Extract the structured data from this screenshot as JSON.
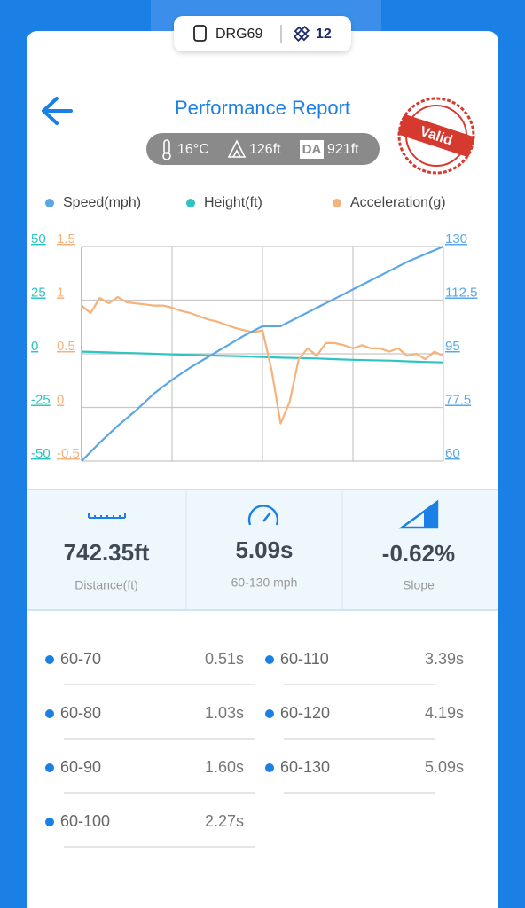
{
  "header": {
    "device": "DRG69",
    "count": "12",
    "title": "Performance Report",
    "stamp": "Valid"
  },
  "conditions": {
    "temperature": "16°C",
    "altitude": "126ft",
    "da_label": "DA",
    "density_altitude": "921ft"
  },
  "chart_data": {
    "type": "line",
    "grid": true,
    "ylim": [
      -50,
      50
    ],
    "yticks": [
      50,
      25,
      0,
      -25,
      -50
    ],
    "y2lim": [
      60,
      130
    ],
    "y2ticks": [
      130,
      112.5,
      95,
      77.5,
      60
    ],
    "y3lim": [
      -0.5,
      1.5
    ],
    "y3ticks": [
      1.5,
      1,
      0.5,
      0,
      -0.5
    ],
    "series": [
      {
        "name": "Speed(mph)",
        "color": "#5aa6e6",
        "axis": "y2",
        "values": [
          60,
          66,
          71.5,
          76.5,
          82,
          86.5,
          90.5,
          94,
          97.5,
          101,
          104,
          104,
          107,
          110,
          113,
          116,
          119,
          122,
          125,
          127.5,
          130
        ]
      },
      {
        "name": "Height(ft)",
        "color": "#2ec4c0",
        "axis": "y",
        "values": [
          1,
          0.8,
          0.5,
          0.3,
          0,
          -0.3,
          -0.5,
          -0.8,
          -1,
          -1.2,
          -1.5,
          -1.8,
          -2,
          -2.2,
          -2.5,
          -2.8,
          -3,
          -3.2,
          -3.5,
          -3.8,
          -4
        ]
      },
      {
        "name": "Acceleration(g)",
        "color": "#f5b27a",
        "axis": "y3",
        "values": [
          0.95,
          0.88,
          1.02,
          0.97,
          1.03,
          0.98,
          0.97,
          0.96,
          0.95,
          0.95,
          0.93,
          0.9,
          0.88,
          0.85,
          0.82,
          0.8,
          0.77,
          0.74,
          0.72,
          0.7,
          0.72,
          0.35,
          -0.15,
          0.05,
          0.45,
          0.55,
          0.48,
          0.6,
          0.6,
          0.58,
          0.55,
          0.58,
          0.55,
          0.55,
          0.52,
          0.55,
          0.48,
          0.5,
          0.45,
          0.52,
          0.48
        ]
      }
    ]
  },
  "stats": [
    {
      "value": "742.35ft",
      "label": "Distance(ft)"
    },
    {
      "value": "5.09s",
      "label": "60-130 mph"
    },
    {
      "value": "-0.62%",
      "label": "Slope"
    }
  ],
  "splits": [
    {
      "range": "60-70",
      "time": "0.51s"
    },
    {
      "range": "60-80",
      "time": "1.03s"
    },
    {
      "range": "60-90",
      "time": "1.60s"
    },
    {
      "range": "60-100",
      "time": "2.27s"
    },
    {
      "range": "60-110",
      "time": "3.39s"
    },
    {
      "range": "60-120",
      "time": "4.19s"
    },
    {
      "range": "60-130",
      "time": "5.09s"
    }
  ]
}
